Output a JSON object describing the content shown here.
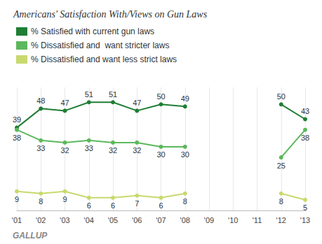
{
  "chart_data": {
    "type": "line",
    "title": "Americans' Satisfaction With/Views on Gun Laws",
    "categories": [
      "'01",
      "'02",
      "'03",
      "'04",
      "'05",
      "'06",
      "'07",
      "'08",
      "'09",
      "'10",
      "'11",
      "'12",
      "'13"
    ],
    "series": [
      {
        "name": "% Satisfied with current gun laws",
        "color": "#1e7e34",
        "values": [
          39,
          48,
          47,
          51,
          51,
          47,
          50,
          49,
          null,
          null,
          null,
          50,
          43
        ]
      },
      {
        "name": "% Dissatisfied and  want stricter laws",
        "color": "#5cb85c",
        "values": [
          38,
          33,
          32,
          33,
          32,
          32,
          30,
          30,
          null,
          null,
          null,
          25,
          38
        ]
      },
      {
        "name": "% Dissatisfied and want less strict laws",
        "color": "#c8d96e",
        "values": [
          9,
          8,
          9,
          6,
          6,
          7,
          6,
          8,
          null,
          null,
          null,
          8,
          5
        ]
      }
    ],
    "ylim": [
      0,
      58
    ],
    "grid": true,
    "legend": "upper left",
    "data_labels": true,
    "tick_labels": "x",
    "annotations": [
      "GALLUP"
    ]
  }
}
